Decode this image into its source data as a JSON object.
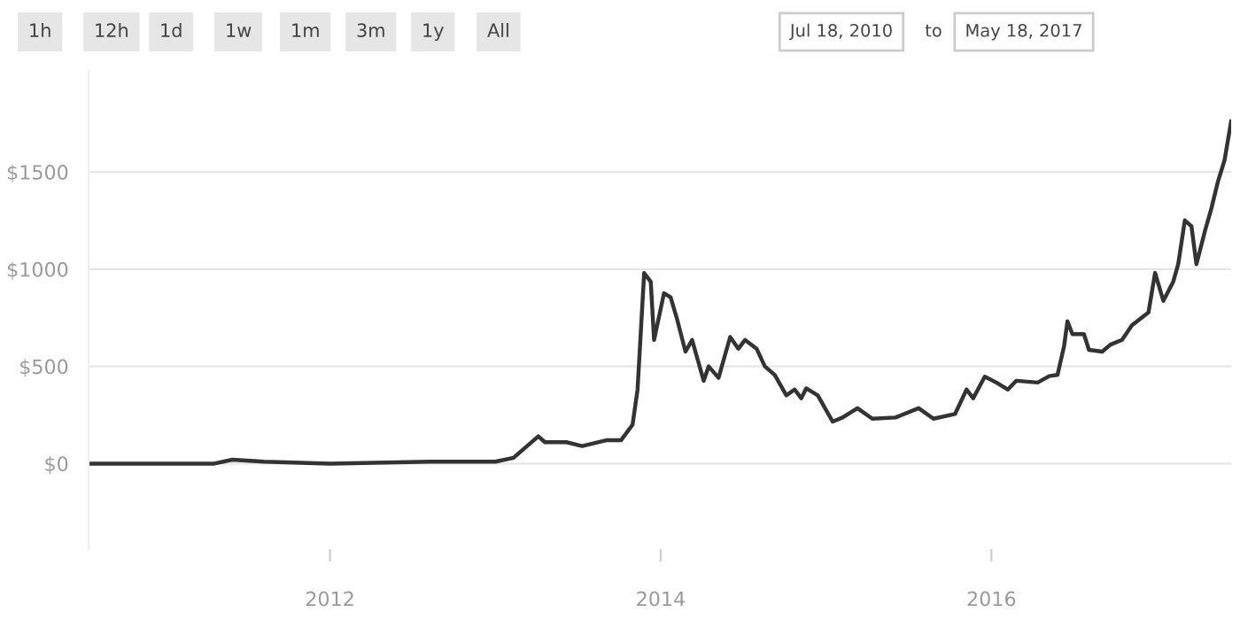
{
  "chart_data": {
    "type": "line",
    "x": [
      2010.54,
      2011.0,
      2011.3,
      2011.41,
      2011.6,
      2012.0,
      2012.6,
      2013.0,
      2013.11,
      2013.26,
      2013.3,
      2013.43,
      2013.525,
      2013.67,
      2013.76,
      2013.83,
      2013.86,
      2013.9,
      2013.94,
      2013.96,
      2014.02,
      2014.06,
      2014.1,
      2014.15,
      2014.19,
      2014.26,
      2014.29,
      2014.35,
      2014.42,
      2014.47,
      2014.51,
      2014.58,
      2014.63,
      2014.69,
      2014.76,
      2014.81,
      2014.85,
      2014.88,
      2014.95,
      2015.04,
      2015.1,
      2015.19,
      2015.28,
      2015.42,
      2015.56,
      2015.65,
      2015.78,
      2015.85,
      2015.89,
      2015.96,
      2016.03,
      2016.1,
      2016.15,
      2016.28,
      2016.35,
      2016.4,
      2016.44,
      2016.46,
      2016.49,
      2016.56,
      2016.59,
      2016.67,
      2016.72,
      2016.79,
      2016.85,
      2016.95,
      2016.99,
      2017.04,
      2017.1,
      2017.13,
      2017.17,
      2017.21,
      2017.24,
      2017.29,
      2017.33,
      2017.37,
      2017.41,
      2017.45
    ],
    "series": [
      {
        "color": "#333333",
        "values": [
          0,
          0,
          0,
          20,
          10,
          0,
          10,
          10,
          30,
          140,
          110,
          110,
          90,
          120,
          120,
          200,
          380,
          980,
          935,
          636,
          876,
          855,
          740,
          576,
          636,
          426,
          500,
          441,
          651,
          591,
          636,
          591,
          500,
          456,
          351,
          381,
          336,
          387,
          351,
          216,
          237,
          285,
          231,
          237,
          285,
          231,
          255,
          381,
          336,
          447,
          417,
          381,
          426,
          417,
          450,
          456,
          606,
          732,
          666,
          666,
          585,
          576,
          612,
          636,
          711,
          777,
          981,
          837,
          936,
          1026,
          1251,
          1221,
          1026,
          1191,
          1311,
          1450,
          1560,
          1760
        ]
      }
    ],
    "xlim": [
      2010.54,
      2017.45
    ],
    "xticks": [
      2012,
      2014,
      2016
    ],
    "ylim": [
      -440,
      2020
    ],
    "yticks": [
      {
        "value": 0,
        "label": "$0"
      },
      {
        "value": 500,
        "label": "$500"
      },
      {
        "value": 1000,
        "label": "$1000"
      },
      {
        "value": 1500,
        "label": "$1500"
      }
    ],
    "grid": "y",
    "line_style": "solid",
    "marker": "none",
    "annotations": [
      "1h",
      "12h",
      "1d",
      "1w",
      "1m",
      "3m",
      "1y",
      "All",
      "Jul 18, 2010",
      "to",
      "May 18, 2017"
    ]
  }
}
